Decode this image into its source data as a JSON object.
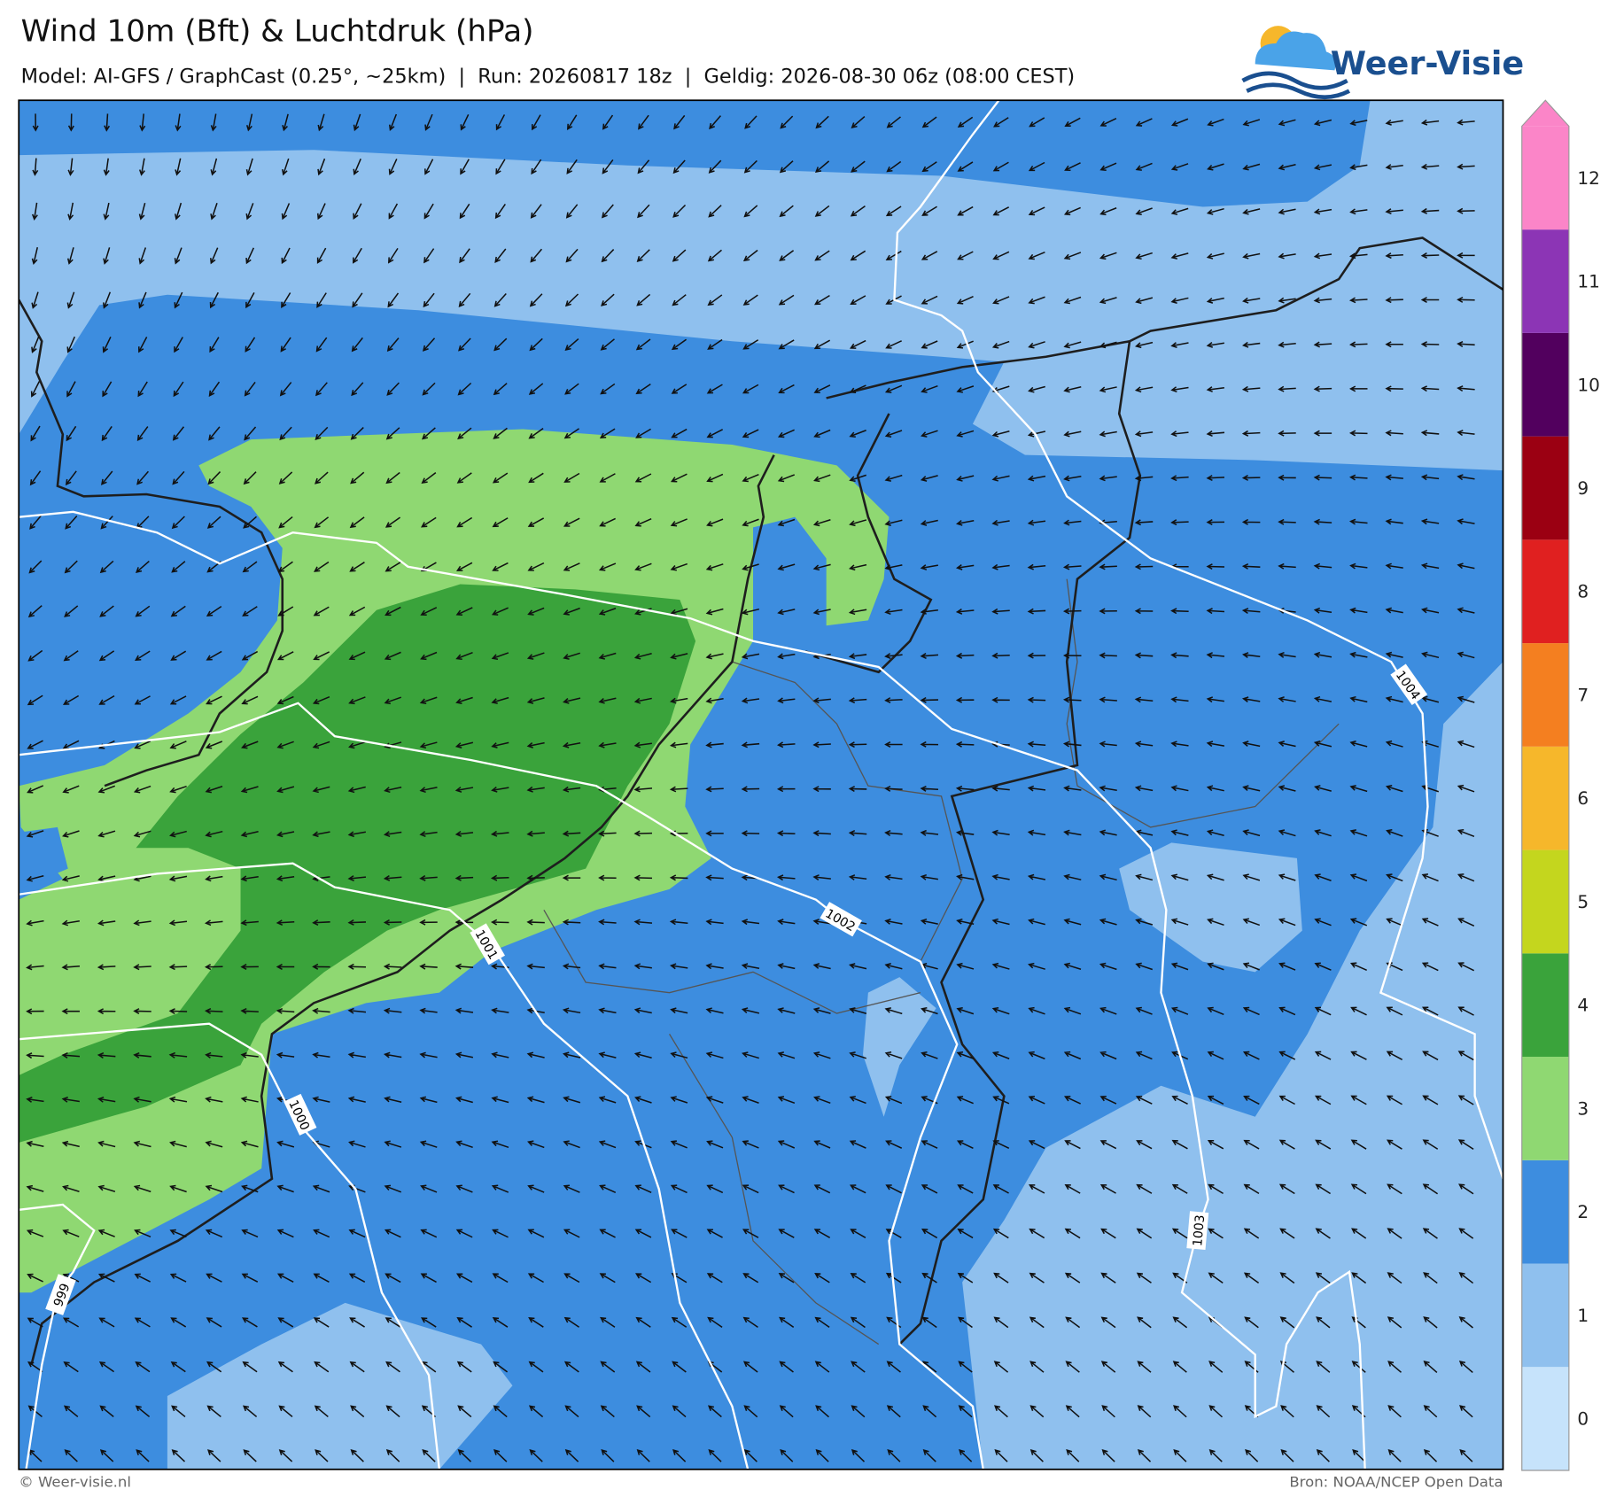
{
  "header": {
    "title": "Wind 10m (Bft) & Luchtdruk (hPa)",
    "subtitle": "Model: AI-GFS / GraphCast (0.25°, ~25km)  |  Run: 20260817 18z  |  Geldig: 2026-08-30 06z (08:00 CEST)",
    "logo": "Weer-Visie"
  },
  "colorbar": {
    "ticks": [
      0,
      1,
      2,
      3,
      4,
      5,
      6,
      7,
      8,
      9,
      10,
      11,
      12
    ],
    "colors": [
      "#c6e3fb",
      "#8fc0ee",
      "#3d8ddf",
      "#8fd872",
      "#3aa33b",
      "#c4d61e",
      "#f6b72b",
      "#f47f20",
      "#e02020",
      "#9b0012",
      "#52005e",
      "#8c35b5",
      "#fb85c8"
    ]
  },
  "isobar_labels": [
    999,
    1000,
    1001,
    1002,
    1003,
    1004
  ],
  "footer": {
    "left": "© Weer-visie.nl",
    "right": "Bron: NOAA/NCEP Open Data"
  }
}
